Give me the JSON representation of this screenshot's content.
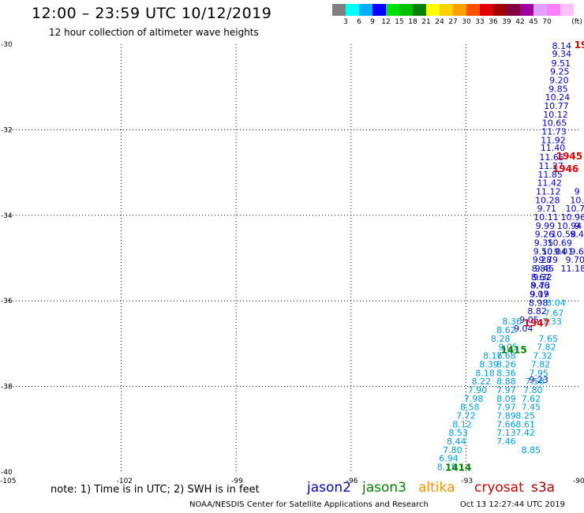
{
  "header": {
    "title": "12:00 – 23:59 UTC 10/12/2019",
    "subtitle": "12 hour collection of altimeter wave heights"
  },
  "colorbar": {
    "unit": "(ft)",
    "colors": [
      "#808080",
      "#00ffff",
      "#00b0ff",
      "#0000ff",
      "#00e000",
      "#00c000",
      "#008000",
      "#ffff00",
      "#ffd000",
      "#ffa000",
      "#ff5000",
      "#e00000",
      "#a00000",
      "#800040",
      "#a000a0",
      "#e0a0ff",
      "#ff80ff",
      "#ffc0ff"
    ],
    "labels": [
      "3",
      "6",
      "9",
      "12",
      "15",
      "18",
      "21",
      "24",
      "27",
      "30",
      "33",
      "36",
      "39",
      "42",
      "45",
      "70"
    ]
  },
  "map": {
    "lon_ticks": [
      "-105",
      "-102",
      "-99",
      "-96",
      "-93",
      "-90"
    ],
    "lat_ticks": [
      "-30",
      "-32",
      "-34",
      "-36",
      "-38",
      "-40"
    ],
    "lon_range": [
      -105,
      -90
    ],
    "lat_range": [
      -40,
      -30
    ]
  },
  "tracks": [
    {
      "name": "jason3-asc",
      "color": "#0000c8",
      "points": [
        {
          "lon": -90.5,
          "lat": -30.04,
          "v": "8.14"
        },
        {
          "lon": -90.5,
          "lat": -30.22,
          "v": "9.34"
        },
        {
          "lon": -90.52,
          "lat": -30.44,
          "v": "9.51"
        },
        {
          "lon": -90.55,
          "lat": -30.64,
          "v": "9.25"
        },
        {
          "lon": -90.57,
          "lat": -30.84,
          "v": "9.20"
        },
        {
          "lon": -90.59,
          "lat": -31.04,
          "v": "9.85"
        },
        {
          "lon": -90.61,
          "lat": -31.24,
          "v": "10.24"
        },
        {
          "lon": -90.64,
          "lat": -31.44,
          "v": "10.77"
        },
        {
          "lon": -90.66,
          "lat": -31.64,
          "v": "10.12"
        },
        {
          "lon": -90.69,
          "lat": -31.84,
          "v": "10.65"
        },
        {
          "lon": -90.7,
          "lat": -32.04,
          "v": "11.73"
        },
        {
          "lon": -90.72,
          "lat": -32.24,
          "v": "11.92"
        },
        {
          "lon": -90.73,
          "lat": -32.42,
          "v": "11.40"
        },
        {
          "lon": -90.76,
          "lat": -32.64,
          "v": "11.65"
        },
        {
          "lon": -90.78,
          "lat": -32.84,
          "v": "11.27"
        },
        {
          "lon": -90.8,
          "lat": -33.04,
          "v": "11.85"
        },
        {
          "lon": -90.82,
          "lat": -33.24,
          "v": "11.42"
        },
        {
          "lon": -90.85,
          "lat": -33.44,
          "v": "11.12"
        },
        {
          "lon": -90.87,
          "lat": -33.64,
          "v": "10.28"
        },
        {
          "lon": -90.89,
          "lat": -33.84,
          "v": "9.71"
        },
        {
          "lon": -90.91,
          "lat": -34.04,
          "v": "10.11"
        },
        {
          "lon": -90.93,
          "lat": -34.24,
          "v": "9.99"
        },
        {
          "lon": -90.95,
          "lat": -34.44,
          "v": "9.26"
        },
        {
          "lon": -90.97,
          "lat": -34.64,
          "v": "9.35"
        },
        {
          "lon": -90.99,
          "lat": -34.84,
          "v": "9.50"
        },
        {
          "lon": -91.01,
          "lat": -35.04,
          "v": "9.28"
        },
        {
          "lon": -91.03,
          "lat": -35.24,
          "v": "8.88"
        },
        {
          "lon": -91.05,
          "lat": -35.44,
          "v": "8.67"
        },
        {
          "lon": -91.07,
          "lat": -35.64,
          "v": "8.46"
        },
        {
          "lon": -91.09,
          "lat": -35.84,
          "v": "9.07"
        },
        {
          "lon": -91.11,
          "lat": -36.04,
          "v": "8.98"
        },
        {
          "lon": -91.14,
          "lat": -36.24,
          "v": "8.82"
        },
        {
          "lon": -91.35,
          "lat": -36.44,
          "v": "9.05"
        },
        {
          "lon": -91.5,
          "lat": -36.64,
          "v": "9.04"
        }
      ]
    },
    {
      "name": "jason3-desc",
      "color": "#0000c8",
      "points": [
        {
          "lon": -90.1,
          "lat": -33.44,
          "v": "9"
        },
        {
          "lon": -90.1,
          "lat": -33.64,
          "v": "10."
        },
        {
          "lon": -90.15,
          "lat": -33.84,
          "v": "10.7"
        },
        {
          "lon": -90.2,
          "lat": -34.04,
          "v": "10.96"
        },
        {
          "lon": -90.3,
          "lat": -34.24,
          "v": "10.94"
        },
        {
          "lon": -90.45,
          "lat": -34.44,
          "v": "10.58"
        },
        {
          "lon": -90.55,
          "lat": -34.64,
          "v": "10.69"
        },
        {
          "lon": -90.7,
          "lat": -34.84,
          "v": "10.04"
        },
        {
          "lon": -90.85,
          "lat": -35.04,
          "v": "9.79"
        },
        {
          "lon": -90.45,
          "lat": -34.84,
          "v": "9.01"
        },
        {
          "lon": -90.95,
          "lat": -35.24,
          "v": "9.45"
        },
        {
          "lon": -91.0,
          "lat": -35.44,
          "v": "9.32"
        },
        {
          "lon": -91.05,
          "lat": -35.64,
          "v": "9.73"
        },
        {
          "lon": -91.08,
          "lat": -35.84,
          "v": "9.19"
        },
        {
          "lon": -90.1,
          "lat": -34.84,
          "v": "9.6"
        },
        {
          "lon": -90.15,
          "lat": -35.04,
          "v": "9.70"
        },
        {
          "lon": -90.2,
          "lat": -35.24,
          "v": "11.18"
        },
        {
          "lon": -90.1,
          "lat": -34.24,
          "v": "9"
        },
        {
          "lon": -90.1,
          "lat": -34.44,
          "v": "9.4"
        },
        {
          "lon": -91.1,
          "lat": -37.84,
          "v": "9.23"
        }
      ]
    },
    {
      "name": "jason2-asc",
      "color": "#009cdc",
      "points": [
        {
          "lon": -93.5,
          "lat": -39.88,
          "v": "8.15"
        },
        {
          "lon": -93.45,
          "lat": -39.68,
          "v": "6.94"
        },
        {
          "lon": -93.35,
          "lat": -39.48,
          "v": "7.80"
        },
        {
          "lon": -93.25,
          "lat": -39.28,
          "v": "8.44"
        },
        {
          "lon": -93.2,
          "lat": -39.08,
          "v": "8.53"
        },
        {
          "lon": -93.1,
          "lat": -38.88,
          "v": "8.12"
        },
        {
          "lon": -93.0,
          "lat": -38.68,
          "v": "7.72"
        },
        {
          "lon": -92.9,
          "lat": -38.48,
          "v": "8.58"
        },
        {
          "lon": -92.8,
          "lat": -38.28,
          "v": "7.98"
        },
        {
          "lon": -92.7,
          "lat": -38.08,
          "v": "7.90"
        },
        {
          "lon": -92.6,
          "lat": -37.88,
          "v": "8.22"
        },
        {
          "lon": -92.5,
          "lat": -37.68,
          "v": "8.18"
        },
        {
          "lon": -92.4,
          "lat": -37.48,
          "v": "8.39"
        },
        {
          "lon": -92.3,
          "lat": -37.28,
          "v": "8.16"
        },
        {
          "lon": -91.9,
          "lat": -37.08,
          "v": "9.05"
        },
        {
          "lon": -92.1,
          "lat": -36.88,
          "v": "8.28"
        },
        {
          "lon": -91.95,
          "lat": -36.68,
          "v": "8.62"
        },
        {
          "lon": -91.8,
          "lat": -36.48,
          "v": "8.36"
        },
        {
          "lon": -91.95,
          "lat": -37.28,
          "v": "7.68"
        },
        {
          "lon": -91.95,
          "lat": -37.48,
          "v": "8.26"
        },
        {
          "lon": -91.95,
          "lat": -37.68,
          "v": "8.36"
        },
        {
          "lon": -91.95,
          "lat": -37.88,
          "v": "8.88"
        },
        {
          "lon": -91.95,
          "lat": -38.08,
          "v": "7.97"
        },
        {
          "lon": -91.95,
          "lat": -38.28,
          "v": "8.09"
        },
        {
          "lon": -91.95,
          "lat": -38.48,
          "v": "7.97"
        },
        {
          "lon": -91.95,
          "lat": -38.68,
          "v": "7.89"
        },
        {
          "lon": -91.95,
          "lat": -38.88,
          "v": "7.66"
        },
        {
          "lon": -91.95,
          "lat": -39.08,
          "v": "7.13"
        },
        {
          "lon": -91.95,
          "lat": -39.28,
          "v": "7.46"
        },
        {
          "lon": -91.3,
          "lat": -39.48,
          "v": "8.85"
        },
        {
          "lon": -91.45,
          "lat": -39.08,
          "v": "7.42"
        },
        {
          "lon": -91.45,
          "lat": -38.88,
          "v": "8.61"
        },
        {
          "lon": -91.45,
          "lat": -38.68,
          "v": "8.25"
        },
        {
          "lon": -91.3,
          "lat": -38.48,
          "v": "7.45"
        },
        {
          "lon": -91.3,
          "lat": -38.28,
          "v": "7.62"
        },
        {
          "lon": -91.25,
          "lat": -38.08,
          "v": "7.80"
        },
        {
          "lon": -91.2,
          "lat": -37.88,
          "v": "7.58"
        },
        {
          "lon": -91.1,
          "lat": -37.68,
          "v": "7.95"
        },
        {
          "lon": -91.05,
          "lat": -37.48,
          "v": "7.82"
        },
        {
          "lon": -91.0,
          "lat": -37.28,
          "v": "7.32"
        },
        {
          "lon": -90.9,
          "lat": -37.08,
          "v": "7.82"
        },
        {
          "lon": -90.85,
          "lat": -36.88,
          "v": "7.65"
        },
        {
          "lon": -90.75,
          "lat": -36.48,
          "v": "7.33"
        },
        {
          "lon": -90.7,
          "lat": -36.28,
          "v": "7.67"
        },
        {
          "lon": -90.65,
          "lat": -36.04,
          "v": "8.04"
        }
      ]
    }
  ],
  "time_labels": [
    {
      "lon": -90.0,
      "lat": -30.0,
      "v": "19",
      "color": "#e00000"
    },
    {
      "lon": -90.3,
      "lat": -32.6,
      "v": "1945",
      "color": "#e00000"
    },
    {
      "lon": -90.4,
      "lat": -32.9,
      "v": "1946",
      "color": "#e00000"
    },
    {
      "lon": -91.15,
      "lat": -36.5,
      "v": "1947",
      "color": "#e00000"
    },
    {
      "lon": -91.75,
      "lat": -37.13,
      "v": "1415",
      "color": "#008000"
    },
    {
      "lon": -93.2,
      "lat": -39.88,
      "v": "1414",
      "color": "#008000"
    }
  ],
  "note": "note:  1) Time is in UTC;  2) SWH is in feet",
  "legend": {
    "items": [
      {
        "label": "jason2",
        "color": "#0000c8"
      },
      {
        "label": "jason3",
        "color": "#008000"
      },
      {
        "label": "altika",
        "color": "#ff9000"
      },
      {
        "label": "cryosat",
        "color": "#c80000"
      },
      {
        "label": "s3a",
        "color": "#a00000"
      }
    ]
  },
  "footer": {
    "org": "NOAA/NESDIS Center for Satellite Applications and Research",
    "timestamp": "Oct 13 12:27:44 UTC 2019"
  }
}
